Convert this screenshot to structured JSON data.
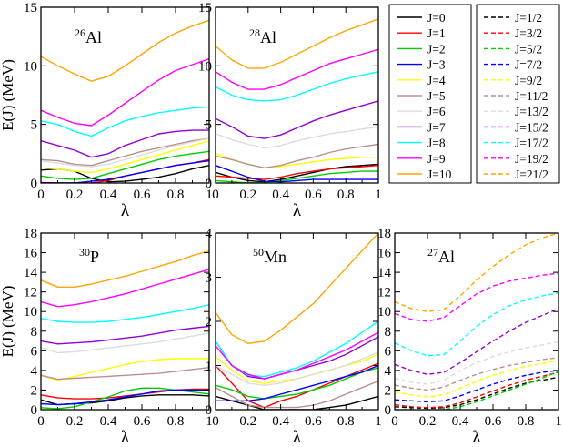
{
  "chart_data": [
    {
      "type": "line",
      "title": "26Al",
      "label_mass": "26",
      "label_elem": "Al",
      "xlabel": "λ",
      "ylabel": "E(J) (MeV)",
      "xlim": [
        0,
        1
      ],
      "ylim": [
        0,
        15
      ],
      "xticks": [
        "0",
        "0.2",
        "0.4",
        "0.6",
        "0.8",
        "1"
      ],
      "yticks": [
        "0",
        "5",
        "10",
        "15"
      ],
      "x": [
        0,
        0.1,
        0.2,
        0.3,
        0.4,
        0.5,
        0.6,
        0.7,
        0.8,
        0.9,
        1.0
      ],
      "series": [
        {
          "name": "J=0",
          "values": [
            1.1,
            1.2,
            1.0,
            0.4,
            0.1,
            0.15,
            0.3,
            0.5,
            0.8,
            1.2,
            1.5
          ]
        },
        {
          "name": "J=1",
          "values": [
            0.05,
            0.0,
            0.0,
            0.0,
            0.2,
            0.6,
            0.9,
            1.2,
            1.5,
            1.7,
            2.0
          ]
        },
        {
          "name": "J=2",
          "values": [
            0.6,
            0.4,
            0.3,
            0.4,
            0.8,
            1.2,
            1.6,
            2.0,
            2.3,
            2.5,
            2.7
          ]
        },
        {
          "name": "J=3",
          "values": [
            0.0,
            0.0,
            0.0,
            0.15,
            0.3,
            0.6,
            0.9,
            1.2,
            1.5,
            1.7,
            1.9
          ]
        },
        {
          "name": "J=4",
          "values": [
            1.3,
            1.2,
            1.0,
            0.9,
            1.2,
            1.6,
            2.0,
            2.4,
            2.8,
            3.2,
            3.6
          ]
        },
        {
          "name": "J=5",
          "values": [
            2.0,
            1.9,
            1.6,
            1.5,
            1.9,
            2.3,
            2.7,
            3.0,
            3.3,
            3.6,
            3.8
          ]
        },
        {
          "name": "J=6",
          "values": [
            1.9,
            1.7,
            1.5,
            1.4,
            1.6,
            2.0,
            2.4,
            2.8,
            3.2,
            3.5,
            3.8
          ]
        },
        {
          "name": "J=7",
          "values": [
            3.6,
            3.2,
            2.8,
            2.2,
            2.5,
            3.2,
            3.7,
            4.2,
            4.4,
            4.5,
            4.5
          ]
        },
        {
          "name": "J=8",
          "values": [
            5.3,
            5.0,
            4.4,
            4.0,
            4.7,
            5.3,
            5.7,
            6.0,
            6.2,
            6.4,
            6.5
          ]
        },
        {
          "name": "J=9",
          "values": [
            6.2,
            5.6,
            5.1,
            4.9,
            5.8,
            6.8,
            7.8,
            8.8,
            9.6,
            10.1,
            10.6
          ]
        },
        {
          "name": "J=10",
          "values": [
            10.8,
            10.0,
            9.3,
            8.7,
            9.1,
            10.0,
            11.0,
            12.0,
            12.8,
            13.4,
            13.9
          ]
        }
      ]
    },
    {
      "type": "line",
      "title": "28Al",
      "label_mass": "28",
      "label_elem": "Al",
      "xlabel": "λ",
      "ylabel": "",
      "xlim": [
        0,
        1
      ],
      "ylim": [
        0,
        15
      ],
      "xticks": [
        "0",
        "0.2",
        "0.4",
        "0.6",
        "0.8",
        "1"
      ],
      "yticks": [
        "0",
        "5",
        "10",
        "15"
      ],
      "x": [
        0,
        0.1,
        0.2,
        0.3,
        0.4,
        0.5,
        0.6,
        0.7,
        0.8,
        0.9,
        1.0
      ],
      "series": [
        {
          "name": "J=0",
          "values": [
            0.9,
            0.5,
            0.2,
            0.1,
            0.3,
            0.6,
            0.9,
            1.2,
            1.4,
            1.5,
            1.6
          ]
        },
        {
          "name": "J=1",
          "values": [
            0.6,
            0.5,
            0.4,
            0.3,
            0.5,
            0.8,
            1.0,
            1.2,
            1.3,
            1.4,
            1.5
          ]
        },
        {
          "name": "J=2",
          "values": [
            0.2,
            0.1,
            0.0,
            0.05,
            0.2,
            0.4,
            0.6,
            0.8,
            0.9,
            1.0,
            1.0
          ]
        },
        {
          "name": "J=3",
          "values": [
            1.5,
            1.0,
            0.5,
            0.15,
            0.1,
            0.2,
            0.3,
            0.3,
            0.3,
            0.3,
            0.3
          ]
        },
        {
          "name": "J=4",
          "values": [
            2.5,
            2.0,
            1.6,
            1.3,
            1.4,
            1.6,
            1.8,
            2.0,
            2.1,
            2.2,
            2.2
          ]
        },
        {
          "name": "J=5",
          "values": [
            2.3,
            2.0,
            1.6,
            1.3,
            1.5,
            1.9,
            2.2,
            2.6,
            2.9,
            3.1,
            3.3
          ]
        },
        {
          "name": "J=6",
          "values": [
            4.2,
            3.7,
            3.3,
            3.0,
            3.2,
            3.6,
            3.9,
            4.2,
            4.4,
            4.6,
            4.8
          ]
        },
        {
          "name": "J=7",
          "values": [
            5.5,
            4.8,
            4.0,
            3.8,
            4.1,
            4.7,
            5.3,
            5.8,
            6.2,
            6.6,
            7.0
          ]
        },
        {
          "name": "J=8",
          "values": [
            8.2,
            7.5,
            7.1,
            7.0,
            7.1,
            7.5,
            8.0,
            8.5,
            8.9,
            9.2,
            9.5
          ]
        },
        {
          "name": "J=9",
          "values": [
            9.5,
            8.6,
            8.0,
            8.0,
            8.4,
            9.0,
            9.6,
            10.2,
            10.6,
            11.0,
            11.4
          ]
        },
        {
          "name": "J=10",
          "values": [
            11.7,
            10.5,
            9.8,
            9.8,
            10.3,
            11.0,
            11.7,
            12.4,
            13.0,
            13.5,
            14.0
          ]
        }
      ]
    },
    {
      "type": "line",
      "title": "30P",
      "label_mass": "30",
      "label_elem": "P",
      "xlabel": "λ",
      "ylabel": "E(J) (MeV)",
      "xlim": [
        0,
        1
      ],
      "ylim": [
        0,
        18
      ],
      "xticks": [
        "0",
        "0.2",
        "0.4",
        "0.6",
        "0.8",
        "1"
      ],
      "yticks": [
        "0",
        "2",
        "4",
        "6",
        "8",
        "10",
        "12",
        "14",
        "16",
        "18"
      ],
      "x": [
        0,
        0.1,
        0.2,
        0.3,
        0.4,
        0.5,
        0.6,
        0.7,
        0.8,
        0.9,
        1.0
      ],
      "series": [
        {
          "name": "J=0",
          "values": [
            1.0,
            0.5,
            0.6,
            0.7,
            0.9,
            1.2,
            1.4,
            1.5,
            1.5,
            1.5,
            1.4
          ]
        },
        {
          "name": "J=1",
          "values": [
            1.5,
            1.2,
            1.1,
            1.1,
            1.2,
            1.4,
            1.6,
            1.8,
            2.0,
            2.1,
            2.1
          ]
        },
        {
          "name": "J=2",
          "values": [
            0.2,
            0.1,
            0.3,
            0.8,
            1.3,
            1.9,
            2.2,
            2.2,
            2.0,
            1.8,
            1.6
          ]
        },
        {
          "name": "J=3",
          "values": [
            0.6,
            0.5,
            0.6,
            0.8,
            1.0,
            1.3,
            1.6,
            1.9,
            2.0,
            2.0,
            2.0
          ]
        },
        {
          "name": "J=4",
          "values": [
            3.5,
            3.0,
            3.4,
            3.8,
            4.2,
            4.6,
            4.9,
            5.1,
            5.2,
            5.2,
            5.2
          ]
        },
        {
          "name": "J=5",
          "values": [
            3.5,
            3.1,
            3.2,
            3.3,
            3.4,
            3.5,
            3.6,
            3.7,
            3.9,
            4.1,
            4.3
          ]
        },
        {
          "name": "J=6",
          "values": [
            6.3,
            5.8,
            5.9,
            6.1,
            6.3,
            6.5,
            6.7,
            6.9,
            7.2,
            7.5,
            7.8
          ]
        },
        {
          "name": "J=7",
          "values": [
            7.0,
            6.7,
            6.8,
            6.9,
            7.1,
            7.3,
            7.5,
            7.8,
            8.1,
            8.3,
            8.5
          ]
        },
        {
          "name": "J=8",
          "values": [
            9.3,
            9.0,
            8.9,
            8.9,
            9.0,
            9.2,
            9.4,
            9.7,
            10.0,
            10.3,
            10.7
          ]
        },
        {
          "name": "J=9",
          "values": [
            11.0,
            10.5,
            10.7,
            11.0,
            11.4,
            11.8,
            12.3,
            12.8,
            13.3,
            13.8,
            14.3
          ]
        },
        {
          "name": "J=10",
          "values": [
            13.2,
            12.5,
            12.5,
            12.8,
            13.2,
            13.6,
            14.1,
            14.6,
            15.1,
            15.7,
            16.2
          ]
        }
      ]
    },
    {
      "type": "line",
      "title": "50Mn",
      "label_mass": "50",
      "label_elem": "Mn",
      "xlabel": "λ",
      "ylabel": "",
      "xlim": [
        0,
        1
      ],
      "ylim": [
        0,
        4
      ],
      "xticks": [
        "0",
        "0.2",
        "0.4",
        "0.6",
        "0.8",
        "1"
      ],
      "yticks": [
        "0",
        "1",
        "2",
        "3",
        "4"
      ],
      "x": [
        0,
        0.1,
        0.2,
        0.3,
        0.4,
        0.5,
        0.6,
        0.7,
        0.8,
        0.9,
        1.0
      ],
      "series": [
        {
          "name": "J=0",
          "values": [
            0.3,
            0.2,
            0.1,
            0.0,
            0.0,
            0.0,
            0.0,
            0.05,
            0.1,
            0.2,
            0.3
          ]
        },
        {
          "name": "J=1",
          "values": [
            1.0,
            0.6,
            0.2,
            0.05,
            0.2,
            0.3,
            0.45,
            0.6,
            0.75,
            0.9,
            1.05
          ]
        },
        {
          "name": "J=2",
          "values": [
            0.55,
            0.45,
            0.3,
            0.25,
            0.3,
            0.35,
            0.45,
            0.55,
            0.7,
            0.85,
            0.95
          ]
        },
        {
          "name": "J=3",
          "values": [
            0.2,
            0.2,
            0.2,
            0.25,
            0.35,
            0.45,
            0.55,
            0.65,
            0.75,
            0.85,
            1.0
          ]
        },
        {
          "name": "J=4",
          "values": [
            1.2,
            0.9,
            0.65,
            0.6,
            0.65,
            0.7,
            0.8,
            0.9,
            1.0,
            1.1,
            1.25
          ]
        },
        {
          "name": "J=5",
          "values": [
            0.5,
            0.3,
            0.1,
            0.05,
            0.05,
            0.05,
            0.1,
            0.2,
            0.35,
            0.5,
            0.65
          ]
        },
        {
          "name": "J=6",
          "values": [
            1.0,
            0.8,
            0.6,
            0.55,
            0.6,
            0.7,
            0.8,
            0.9,
            1.0,
            1.15,
            1.3
          ]
        },
        {
          "name": "J=7",
          "values": [
            1.55,
            1.0,
            0.75,
            0.7,
            0.8,
            0.9,
            1.0,
            1.1,
            1.25,
            1.45,
            1.65
          ]
        },
        {
          "name": "J=8",
          "values": [
            1.55,
            1.0,
            0.78,
            0.75,
            0.85,
            0.95,
            1.1,
            1.3,
            1.5,
            1.75,
            2.0
          ]
        },
        {
          "name": "J=9",
          "values": [
            1.45,
            1.0,
            0.8,
            0.7,
            0.8,
            0.9,
            1.05,
            1.2,
            1.35,
            1.55,
            1.75
          ]
        },
        {
          "name": "J=10",
          "values": [
            2.2,
            1.7,
            1.5,
            1.55,
            1.8,
            2.1,
            2.4,
            2.8,
            3.2,
            3.6,
            4.0
          ]
        }
      ]
    },
    {
      "type": "line",
      "title": "27Al",
      "label_mass": "27",
      "label_elem": "Al",
      "xlabel": "λ",
      "ylabel": "",
      "xlim": [
        0,
        1
      ],
      "ylim": [
        0,
        18
      ],
      "xticks": [
        "0",
        "0.2",
        "0.4",
        "0.6",
        "0.8",
        "1"
      ],
      "yticks": [
        "0",
        "2",
        "4",
        "6",
        "8",
        "10",
        "12",
        "14",
        "16",
        "18"
      ],
      "x": [
        0,
        0.1,
        0.2,
        0.3,
        0.4,
        0.5,
        0.6,
        0.7,
        0.8,
        0.9,
        1.0
      ],
      "series": [
        {
          "name": "J=1/2",
          "values": [
            0.3,
            0.2,
            0.15,
            0.2,
            0.5,
            1.0,
            1.6,
            2.2,
            2.7,
            3.0,
            3.3
          ]
        },
        {
          "name": "J=3/2",
          "values": [
            0.5,
            0.3,
            0.2,
            0.3,
            0.7,
            1.3,
            1.9,
            2.5,
            3.0,
            3.4,
            3.8
          ]
        },
        {
          "name": "J=5/2",
          "values": [
            0.0,
            0.0,
            0.0,
            0.0,
            0.3,
            0.8,
            1.4,
            2.0,
            2.6,
            3.2,
            3.9
          ]
        },
        {
          "name": "J=7/2",
          "values": [
            1.0,
            0.9,
            0.8,
            0.9,
            1.4,
            2.0,
            2.6,
            3.1,
            3.5,
            3.8,
            4.0
          ]
        },
        {
          "name": "J=9/2",
          "values": [
            1.8,
            1.5,
            1.3,
            1.5,
            2.2,
            2.9,
            3.5,
            4.0,
            4.4,
            4.7,
            5.0
          ]
        },
        {
          "name": "J=11/2",
          "values": [
            2.5,
            2.2,
            2.0,
            2.3,
            3.0,
            3.6,
            4.1,
            4.5,
            4.8,
            5.1,
            5.3
          ]
        },
        {
          "name": "J=13/2",
          "values": [
            3.2,
            2.8,
            2.6,
            3.0,
            4.0,
            4.8,
            5.4,
            5.9,
            6.3,
            6.6,
            6.9
          ]
        },
        {
          "name": "J=15/2",
          "values": [
            4.6,
            4.0,
            3.6,
            3.8,
            4.8,
            5.9,
            7.0,
            8.0,
            8.9,
            9.6,
            10.3
          ]
        },
        {
          "name": "J=17/2",
          "values": [
            6.8,
            6.0,
            5.5,
            5.6,
            7.0,
            8.5,
            9.7,
            10.6,
            11.2,
            11.6,
            11.9
          ]
        },
        {
          "name": "J=19/2",
          "values": [
            9.8,
            9.2,
            9.0,
            9.4,
            10.6,
            11.8,
            12.6,
            13.1,
            13.4,
            13.7,
            13.9
          ]
        },
        {
          "name": "J=21/2",
          "values": [
            11.0,
            10.3,
            10.0,
            10.2,
            11.6,
            13.2,
            14.6,
            15.8,
            16.8,
            17.5,
            18.0
          ]
        }
      ]
    }
  ],
  "legend_integer": {
    "entries": [
      "J=0",
      "J=1",
      "J=2",
      "J=3",
      "J=4",
      "J=5",
      "J=6",
      "J=7",
      "J=8",
      "J=9",
      "J=10"
    ],
    "colors": [
      "#000000",
      "#ff0000",
      "#00cc00",
      "#0000ff",
      "#ffff00",
      "#bc8f8f",
      "#dcdcdc",
      "#9400d3",
      "#00ffff",
      "#ff00ff",
      "#ffa500"
    ]
  },
  "legend_half": {
    "entries": [
      "J=1/2",
      "J=3/2",
      "J=5/2",
      "J=7/2",
      "J=9/2",
      "J=11/2",
      "J=13/2",
      "J=15/2",
      "J=17/2",
      "J=19/2",
      "J=21/2"
    ],
    "colors": [
      "#000000",
      "#ff0000",
      "#00cc00",
      "#0000ff",
      "#ffff00",
      "#bc8f8f",
      "#dcdcdc",
      "#9400d3",
      "#00ffff",
      "#ff00ff",
      "#ffa500"
    ]
  }
}
